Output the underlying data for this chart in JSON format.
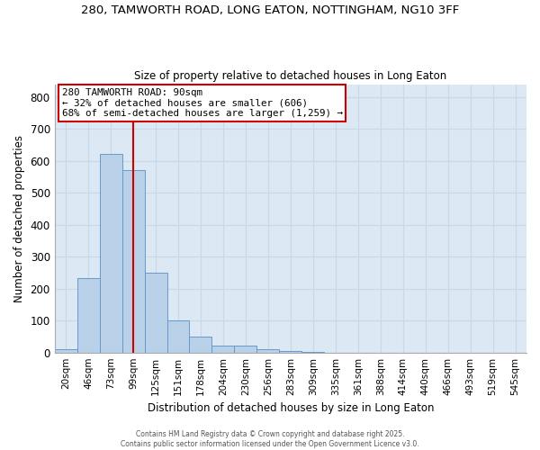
{
  "title1": "280, TAMWORTH ROAD, LONG EATON, NOTTINGHAM, NG10 3FF",
  "title2": "Size of property relative to detached houses in Long Eaton",
  "xlabel": "Distribution of detached houses by size in Long Eaton",
  "ylabel": "Number of detached properties",
  "categories": [
    "20sqm",
    "46sqm",
    "73sqm",
    "99sqm",
    "125sqm",
    "151sqm",
    "178sqm",
    "204sqm",
    "230sqm",
    "256sqm",
    "283sqm",
    "309sqm",
    "335sqm",
    "361sqm",
    "388sqm",
    "414sqm",
    "440sqm",
    "466sqm",
    "493sqm",
    "519sqm",
    "545sqm"
  ],
  "values": [
    10,
    233,
    621,
    570,
    250,
    100,
    50,
    22,
    22,
    10,
    5,
    2,
    0,
    0,
    0,
    0,
    0,
    0,
    0,
    0,
    0
  ],
  "bar_color": "#b8d0e8",
  "bar_edge_color": "#6699cc",
  "grid_color": "#c8d8e8",
  "bg_color": "#dce8f4",
  "annotation_box_text": "280 TAMWORTH ROAD: 90sqm\n← 32% of detached houses are smaller (606)\n68% of semi-detached houses are larger (1,259) →",
  "annotation_box_color": "#cc0000",
  "vline_color": "#cc0000",
  "vline_x_index": 3.0,
  "ylim": [
    0,
    840
  ],
  "yticks": [
    0,
    100,
    200,
    300,
    400,
    500,
    600,
    700,
    800
  ],
  "footer1": "Contains HM Land Registry data © Crown copyright and database right 2025.",
  "footer2": "Contains public sector information licensed under the Open Government Licence v3.0."
}
